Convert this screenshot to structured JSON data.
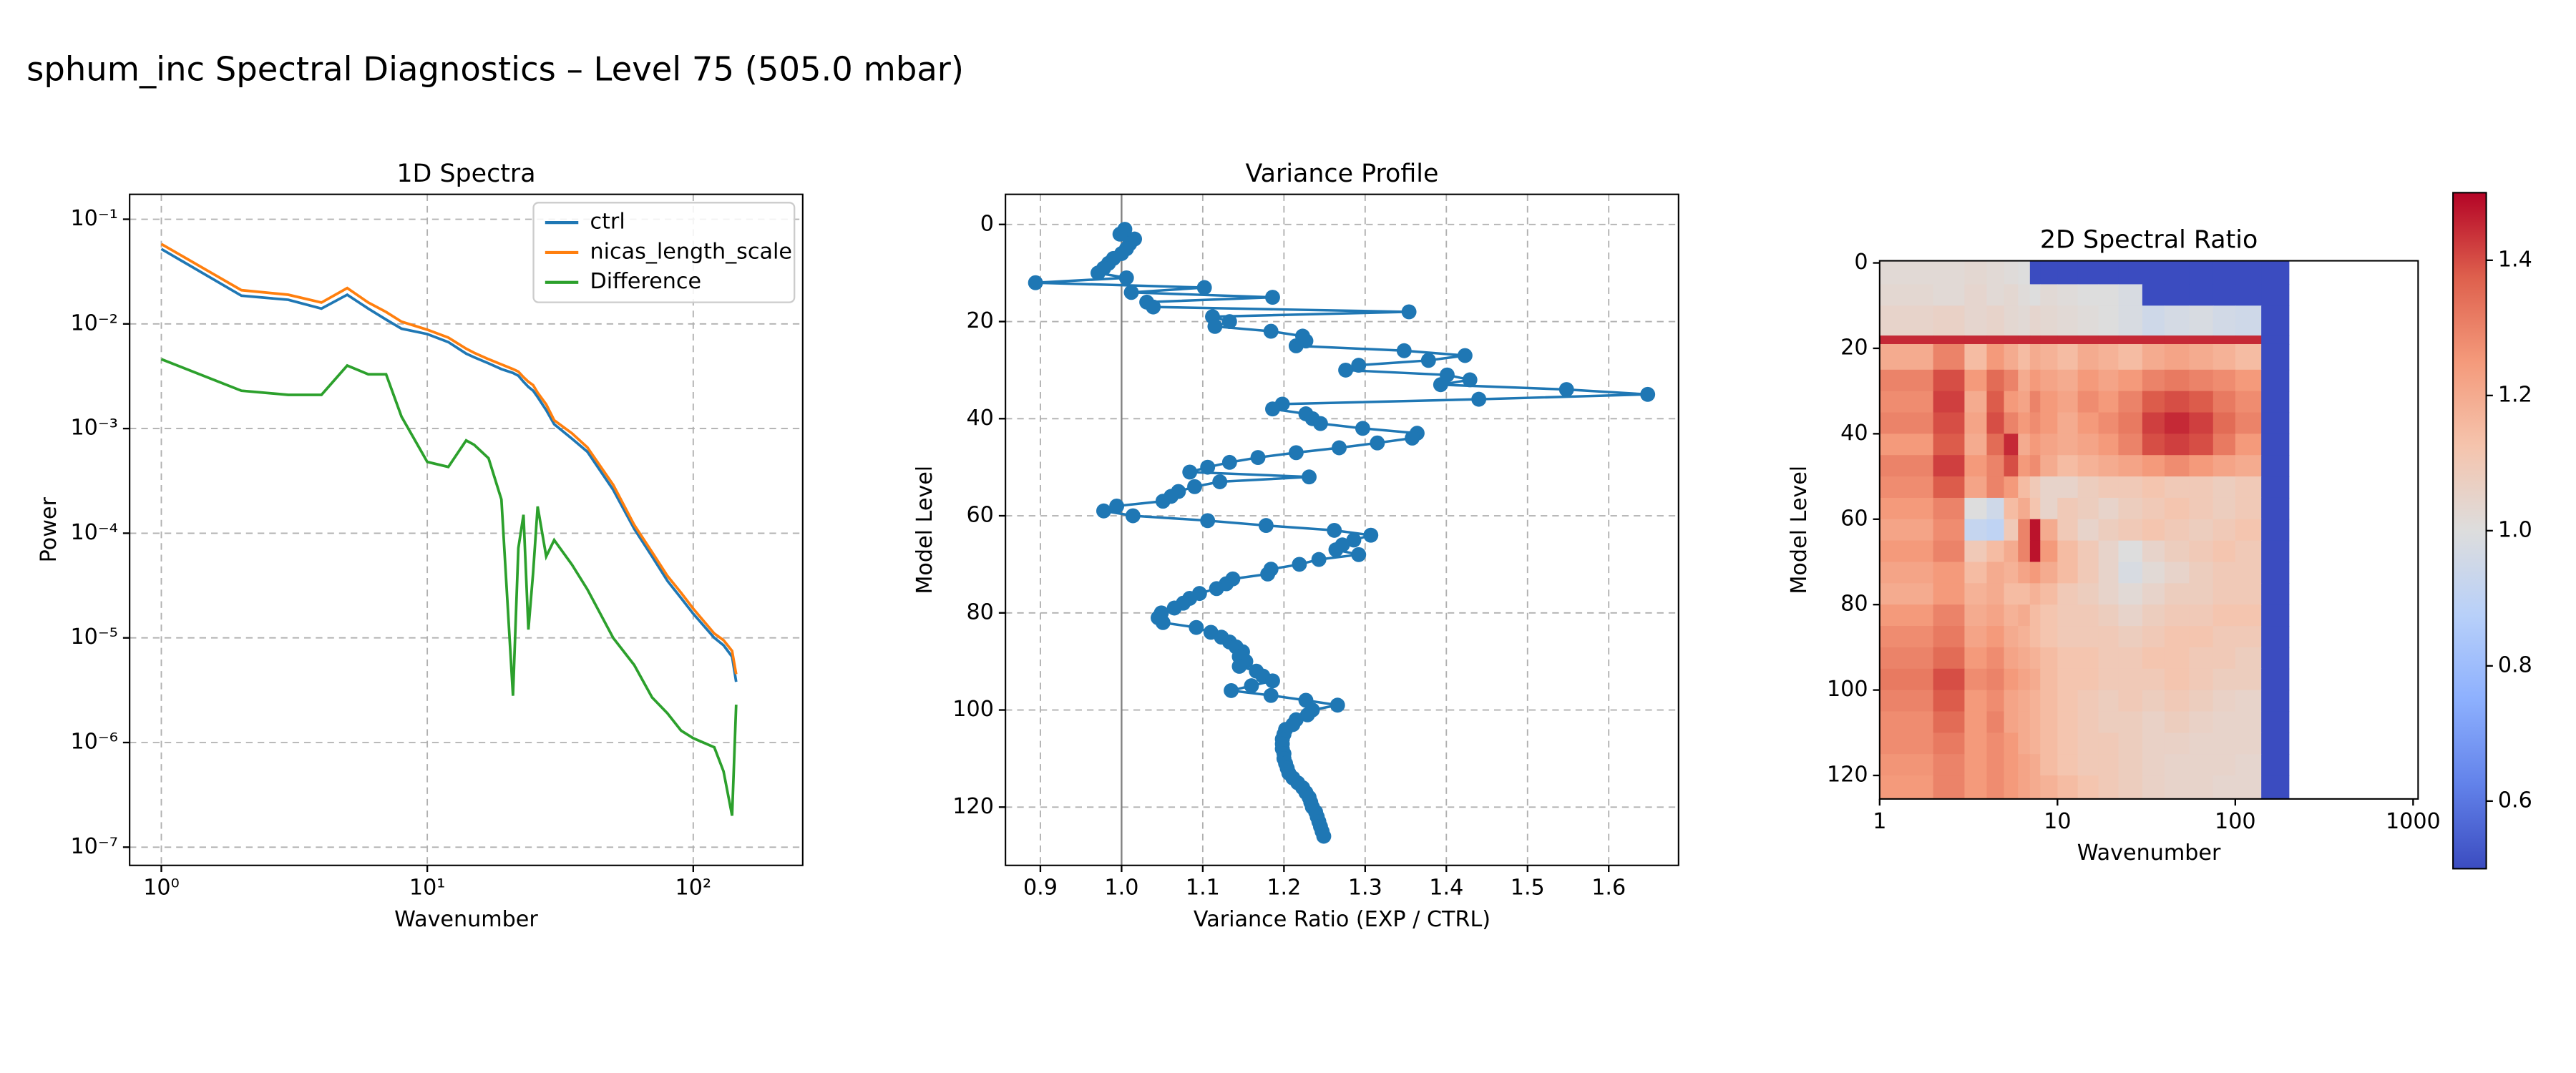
{
  "title": "sphum_inc Spectral Diagnostics – Level 75 (505.0 mbar)",
  "chart_data": [
    {
      "type": "line",
      "title": "1D Spectra",
      "x_label": "Wavenumber",
      "y_label": "Power",
      "x": [
        1,
        2,
        3,
        4,
        5,
        6,
        7,
        8,
        10,
        12,
        14,
        15,
        17,
        19,
        21,
        22,
        23,
        24,
        25,
        26,
        28,
        30,
        35,
        40,
        50,
        60,
        70,
        80,
        90,
        100,
        120,
        130,
        140,
        145
      ],
      "series": [
        {
          "name": "ctrl",
          "color": "#1f77b4",
          "values": [
            0.052,
            0.0186,
            0.017,
            0.014,
            0.019,
            0.014,
            0.011,
            0.009,
            0.008,
            0.0067,
            0.0052,
            0.0048,
            0.0042,
            0.0037,
            0.0034,
            0.0032,
            0.0028,
            0.0025,
            0.0023,
            0.002,
            0.0015,
            0.0011,
            0.0008,
            0.0006,
            0.00026,
            0.00011,
            6e-05,
            3.5e-05,
            2.4e-05,
            1.7e-05,
            1e-05,
            8.5e-06,
            6.6e-06,
            3.8e-06
          ]
        },
        {
          "name": "nicas_length_scale",
          "color": "#ff7f0e",
          "values": [
            0.058,
            0.021,
            0.019,
            0.016,
            0.022,
            0.016,
            0.013,
            0.0105,
            0.0088,
            0.0074,
            0.0058,
            0.0053,
            0.0046,
            0.0041,
            0.0037,
            0.0035,
            0.0031,
            0.0028,
            0.0026,
            0.0022,
            0.0017,
            0.0012,
            0.0009,
            0.00066,
            0.00029,
            0.00012,
            6.6e-05,
            3.9e-05,
            2.7e-05,
            1.9e-05,
            1.1e-05,
            9.5e-06,
            7.5e-06,
            4.5e-06
          ]
        },
        {
          "name": "Difference",
          "color": "#2ca02c",
          "values": [
            0.0046,
            0.0023,
            0.0021,
            0.0021,
            0.004,
            0.0033,
            0.0033,
            0.0013,
            0.00048,
            0.00043,
            0.00077,
            0.0007,
            0.00052,
            0.00021,
            2.8e-06,
            7.2e-05,
            0.00015,
            1.2e-05,
            4.2e-05,
            0.00018,
            6e-05,
            8.6e-05,
            5e-05,
            2.9e-05,
            1e-05,
            5.5e-06,
            2.7e-06,
            1.9e-06,
            1.3e-06,
            1.1e-06,
            9e-07,
            5.3e-07,
            2e-07,
            2.3e-06
          ]
        }
      ],
      "xlog": true,
      "ylog": true,
      "xlim": [
        0.76,
        258
      ],
      "ylim": [
        6.7e-08,
        0.173
      ],
      "xticks": [
        {
          "value": 1,
          "label": "10⁰"
        },
        {
          "value": 10,
          "label": "10¹"
        },
        {
          "value": 100,
          "label": "10²"
        }
      ],
      "yticks": [
        {
          "value": 1e-07,
          "label": "10⁻⁷"
        },
        {
          "value": 1e-06,
          "label": "10⁻⁶"
        },
        {
          "value": 1e-05,
          "label": "10⁻⁵"
        },
        {
          "value": 0.0001,
          "label": "10⁻⁴"
        },
        {
          "value": 0.001,
          "label": "10⁻³"
        },
        {
          "value": 0.01,
          "label": "10⁻²"
        },
        {
          "value": 0.1,
          "label": "10⁻¹"
        }
      ],
      "grid": true,
      "legend": "upper right"
    },
    {
      "type": "line",
      "orientation": "vertical",
      "markers": true,
      "title": "Variance Profile",
      "x_label": "Variance Ratio (EXP / CTRL)",
      "y_label": "Model Level",
      "color": "#1f77b4",
      "reference_line": 1,
      "y": [
        1,
        2,
        3,
        4,
        5,
        6,
        7,
        8,
        9,
        10,
        11,
        12,
        13,
        14,
        15,
        16,
        17,
        18,
        19,
        20,
        21,
        22,
        23,
        24,
        25,
        26,
        27,
        28,
        29,
        30,
        31,
        32,
        33,
        34,
        35,
        36,
        37,
        38,
        39,
        40,
        41,
        42,
        43,
        44,
        45,
        46,
        47,
        48,
        49,
        50,
        51,
        52,
        53,
        54,
        55,
        56,
        57,
        58,
        59,
        60,
        61,
        62,
        63,
        64,
        65,
        66,
        67,
        68,
        69,
        70,
        71,
        72,
        73,
        74,
        75,
        76,
        77,
        78,
        79,
        80,
        81,
        82,
        83,
        84,
        85,
        86,
        87,
        88,
        89,
        90,
        91,
        92,
        93,
        94,
        95,
        96,
        97,
        98,
        99,
        100,
        101,
        102,
        103,
        104,
        105,
        106,
        107,
        108,
        109,
        110,
        111,
        112,
        113,
        114,
        115,
        116,
        117,
        118,
        119,
        120,
        121,
        122,
        123,
        124,
        125,
        126
      ],
      "values": [
        1.004,
        0.998,
        1.016,
        1.01,
        1.006,
        1.0,
        0.99,
        0.984,
        0.978,
        0.971,
        1.006,
        0.894,
        1.102,
        1.012,
        1.186,
        1.031,
        1.039,
        1.354,
        1.112,
        1.133,
        1.115,
        1.184,
        1.223,
        1.227,
        1.215,
        1.348,
        1.423,
        1.378,
        1.292,
        1.276,
        1.401,
        1.429,
        1.393,
        1.548,
        1.648,
        1.44,
        1.198,
        1.186,
        1.227,
        1.235,
        1.245,
        1.297,
        1.364,
        1.358,
        1.315,
        1.268,
        1.215,
        1.168,
        1.133,
        1.106,
        1.084,
        1.231,
        1.121,
        1.09,
        1.07,
        1.061,
        1.051,
        0.994,
        0.978,
        1.014,
        1.106,
        1.178,
        1.262,
        1.307,
        1.286,
        1.272,
        1.264,
        1.292,
        1.243,
        1.219,
        1.184,
        1.18,
        1.137,
        1.129,
        1.117,
        1.096,
        1.084,
        1.076,
        1.065,
        1.049,
        1.045,
        1.051,
        1.092,
        1.11,
        1.123,
        1.133,
        1.141,
        1.149,
        1.145,
        1.153,
        1.145,
        1.166,
        1.174,
        1.186,
        1.16,
        1.135,
        1.184,
        1.227,
        1.266,
        1.235,
        1.229,
        1.215,
        1.211,
        1.202,
        1.2,
        1.198,
        1.198,
        1.198,
        1.2,
        1.2,
        1.202,
        1.204,
        1.206,
        1.211,
        1.217,
        1.223,
        1.227,
        1.231,
        1.233,
        1.235,
        1.239,
        1.241,
        1.243,
        1.245,
        1.247,
        1.249
      ],
      "xlim": [
        0.857,
        1.686
      ],
      "ylim": [
        132,
        -6.2
      ],
      "xticks": [
        0.9,
        {
          "value": 1,
          "label": "1.0"
        },
        1.1,
        1.2,
        1.3,
        1.4,
        1.5,
        1.6
      ],
      "yticks": [
        0,
        20,
        40,
        60,
        80,
        100,
        120
      ],
      "grid": true
    },
    {
      "type": "heatmap",
      "title": "2D Spectral Ratio",
      "x_label": "Wavenumber",
      "y_label": "Model Level",
      "colormap": "coolwarm",
      "xlog": true,
      "x_edges": [
        1,
        2,
        3,
        4,
        5,
        6,
        7,
        8,
        10,
        13,
        17,
        22,
        30,
        40,
        55,
        75,
        100,
        140,
        200
      ],
      "y_edges": [
        -0.5,
        5,
        10,
        17,
        19,
        25,
        30,
        35,
        40,
        45,
        50,
        55,
        60,
        65,
        70,
        75,
        80,
        85,
        90,
        95,
        100,
        105,
        110,
        115,
        120,
        125.5
      ],
      "values": [
        [
          1.02,
          1.02,
          1.03,
          1.02,
          1.01,
          1.0,
          0.5,
          0.5,
          0.5,
          0.5,
          0.5,
          0.5,
          0.5,
          0.5,
          0.5,
          0.5,
          0.5,
          0.5
        ],
        [
          1.03,
          1.02,
          1.04,
          1.02,
          1.03,
          1.01,
          1.0,
          1.02,
          1.01,
          1.0,
          1.0,
          0.98,
          0.5,
          0.5,
          0.5,
          0.5,
          0.5,
          0.5
        ],
        [
          1.05,
          1.06,
          1.04,
          1.05,
          1.03,
          1.02,
          1.04,
          1.03,
          1.02,
          1.01,
          1.0,
          0.98,
          0.95,
          0.97,
          0.98,
          0.96,
          0.95,
          0.5
        ],
        [
          1.45,
          1.45,
          1.45,
          1.45,
          1.45,
          1.45,
          1.45,
          1.45,
          1.45,
          1.45,
          1.45,
          1.45,
          1.45,
          1.45,
          1.45,
          1.45,
          1.45,
          0.5
        ],
        [
          1.2,
          1.3,
          1.15,
          1.25,
          1.2,
          1.15,
          1.2,
          1.18,
          1.15,
          1.2,
          1.18,
          1.15,
          1.2,
          1.22,
          1.2,
          1.18,
          1.15,
          0.5
        ],
        [
          1.3,
          1.4,
          1.25,
          1.35,
          1.3,
          1.2,
          1.25,
          1.22,
          1.2,
          1.25,
          1.22,
          1.25,
          1.3,
          1.32,
          1.3,
          1.28,
          1.25,
          0.5
        ],
        [
          1.28,
          1.42,
          1.2,
          1.38,
          1.25,
          1.22,
          1.3,
          1.25,
          1.22,
          1.28,
          1.25,
          1.3,
          1.38,
          1.4,
          1.38,
          1.32,
          1.28,
          0.5
        ],
        [
          1.3,
          1.4,
          1.22,
          1.4,
          1.3,
          1.25,
          1.28,
          1.25,
          1.2,
          1.25,
          1.28,
          1.32,
          1.42,
          1.45,
          1.42,
          1.35,
          1.3,
          0.5
        ],
        [
          1.25,
          1.38,
          1.2,
          1.35,
          1.45,
          1.2,
          1.25,
          1.22,
          1.2,
          1.22,
          1.25,
          1.3,
          1.4,
          1.42,
          1.4,
          1.32,
          1.25,
          0.5
        ],
        [
          1.3,
          1.42,
          1.25,
          1.3,
          1.4,
          1.25,
          1.28,
          1.2,
          1.15,
          1.18,
          1.2,
          1.22,
          1.25,
          1.28,
          1.25,
          1.22,
          1.2,
          0.5
        ],
        [
          1.28,
          1.38,
          1.22,
          1.3,
          1.25,
          1.15,
          1.1,
          1.05,
          1.05,
          1.08,
          1.1,
          1.1,
          1.12,
          1.1,
          1.1,
          1.08,
          1.1,
          0.5
        ],
        [
          1.25,
          1.3,
          1.0,
          0.95,
          1.15,
          1.2,
          1.12,
          1.05,
          1.1,
          1.08,
          1.05,
          1.08,
          1.1,
          1.12,
          1.1,
          1.08,
          1.1,
          0.5
        ],
        [
          1.22,
          1.28,
          0.92,
          0.9,
          1.1,
          1.3,
          1.48,
          1.2,
          1.1,
          1.05,
          1.08,
          1.1,
          1.12,
          1.1,
          1.08,
          1.1,
          1.12,
          0.5
        ],
        [
          1.25,
          1.3,
          1.1,
          1.15,
          1.2,
          1.3,
          1.48,
          1.25,
          1.15,
          1.1,
          1.05,
          1.0,
          1.05,
          1.08,
          1.1,
          1.12,
          1.1,
          0.5
        ],
        [
          1.22,
          1.25,
          1.15,
          1.2,
          1.18,
          1.22,
          1.25,
          1.2,
          1.15,
          1.1,
          1.05,
          0.98,
          1.02,
          1.05,
          1.08,
          1.1,
          1.1,
          0.5
        ],
        [
          1.2,
          1.25,
          1.18,
          1.2,
          1.15,
          1.15,
          1.18,
          1.15,
          1.1,
          1.08,
          1.05,
          1.02,
          1.05,
          1.08,
          1.08,
          1.1,
          1.1,
          0.5
        ],
        [
          1.25,
          1.3,
          1.2,
          1.22,
          1.18,
          1.2,
          1.15,
          1.12,
          1.1,
          1.1,
          1.08,
          1.05,
          1.08,
          1.1,
          1.1,
          1.12,
          1.12,
          0.5
        ],
        [
          1.28,
          1.32,
          1.22,
          1.25,
          1.2,
          1.18,
          1.15,
          1.12,
          1.1,
          1.1,
          1.1,
          1.08,
          1.1,
          1.12,
          1.12,
          1.1,
          1.1,
          0.5
        ],
        [
          1.3,
          1.35,
          1.25,
          1.28,
          1.22,
          1.2,
          1.18,
          1.15,
          1.12,
          1.12,
          1.1,
          1.1,
          1.12,
          1.12,
          1.1,
          1.1,
          1.08,
          0.5
        ],
        [
          1.32,
          1.4,
          1.28,
          1.3,
          1.25,
          1.22,
          1.2,
          1.15,
          1.12,
          1.12,
          1.1,
          1.1,
          1.1,
          1.12,
          1.1,
          1.08,
          1.08,
          0.5
        ],
        [
          1.3,
          1.38,
          1.25,
          1.28,
          1.22,
          1.2,
          1.18,
          1.15,
          1.12,
          1.1,
          1.08,
          1.1,
          1.08,
          1.1,
          1.08,
          1.06,
          1.05,
          0.5
        ],
        [
          1.28,
          1.35,
          1.25,
          1.3,
          1.22,
          1.2,
          1.18,
          1.15,
          1.12,
          1.1,
          1.08,
          1.08,
          1.06,
          1.08,
          1.06,
          1.05,
          1.05,
          0.5
        ],
        [
          1.28,
          1.32,
          1.25,
          1.28,
          1.25,
          1.2,
          1.18,
          1.15,
          1.12,
          1.1,
          1.1,
          1.08,
          1.06,
          1.06,
          1.05,
          1.05,
          1.05,
          0.5
        ],
        [
          1.26,
          1.3,
          1.25,
          1.28,
          1.25,
          1.22,
          1.2,
          1.15,
          1.12,
          1.1,
          1.1,
          1.08,
          1.06,
          1.05,
          1.05,
          1.05,
          1.04,
          0.5
        ],
        [
          1.25,
          1.3,
          1.25,
          1.28,
          1.25,
          1.22,
          1.2,
          1.18,
          1.15,
          1.12,
          1.1,
          1.08,
          1.06,
          1.05,
          1.05,
          1.04,
          1.04,
          0.5
        ]
      ],
      "xlim": [
        1,
        1067
      ],
      "ylim": [
        125.5,
        -0.5
      ],
      "xticks": [
        1,
        10,
        100,
        1000
      ],
      "yticks": [
        0,
        20,
        40,
        60,
        80,
        100,
        120
      ],
      "clim": [
        0.5,
        1.5
      ],
      "cticks": [
        0.6,
        0.8,
        {
          "value": 1,
          "label": "1.0"
        },
        1.2,
        1.4
      ]
    }
  ]
}
